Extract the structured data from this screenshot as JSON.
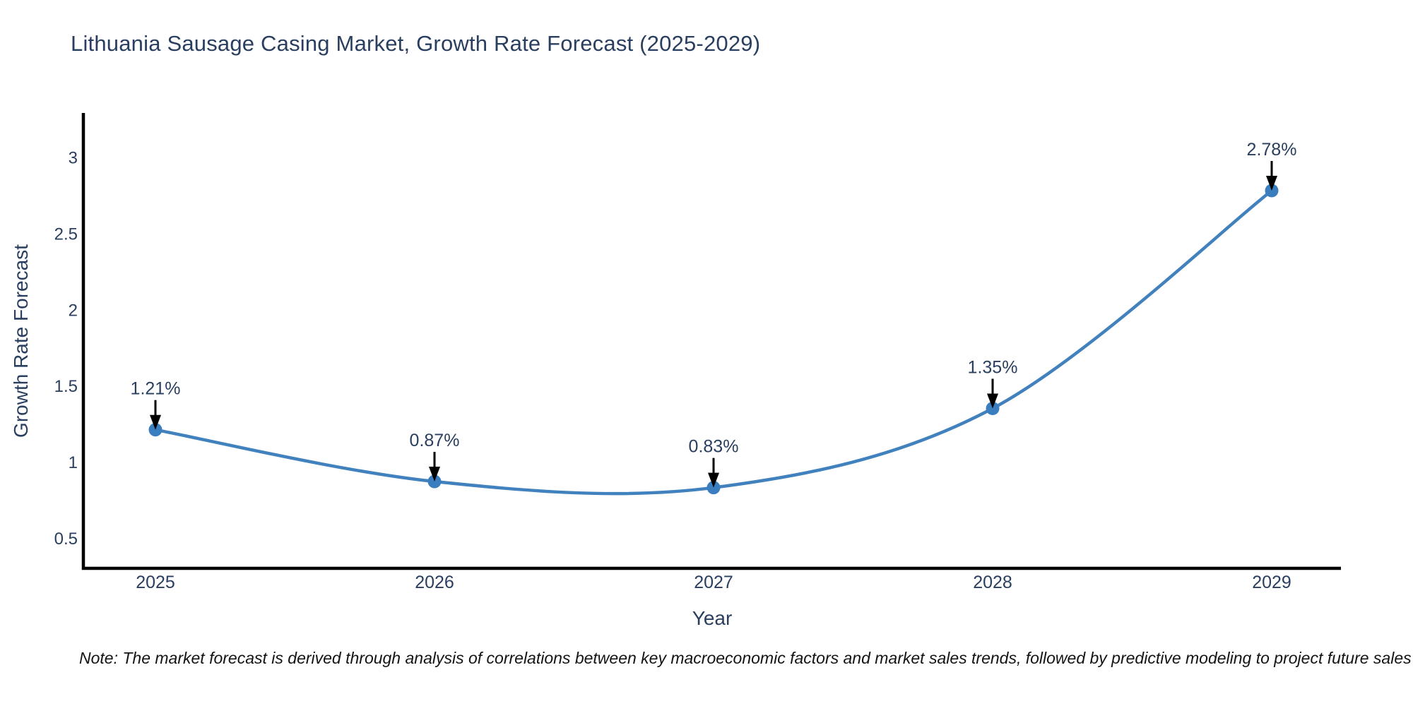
{
  "page": {
    "background": "#ffffff"
  },
  "chart_data": {
    "type": "line",
    "title": "Lithuania Sausage Casing Market, Growth Rate Forecast (2025-2029)",
    "xlabel": "Year",
    "ylabel": "Growth Rate Forecast",
    "categories": [
      "2025",
      "2026",
      "2027",
      "2028",
      "2029"
    ],
    "series": [
      {
        "name": "Growth Rate Forecast",
        "values": [
          1.21,
          0.87,
          0.83,
          1.35,
          2.78
        ],
        "point_labels": [
          "1.21%",
          "0.87%",
          "0.83%",
          "1.35%",
          "2.78%"
        ]
      }
    ],
    "line_shape": "spline",
    "markers": true,
    "grid": false,
    "legend_position": "none",
    "yticks": [
      0.5,
      1,
      1.5,
      2,
      2.5,
      3
    ],
    "ytick_labels": [
      "0.5",
      "1",
      "1.5",
      "2",
      "2.5",
      "3"
    ],
    "ylim": [
      0.3,
      3.29
    ],
    "colors": {
      "line": "#4181bd",
      "marker": "#3a7ec0",
      "annotation_text": "#2a3f5f",
      "annotation_arrow": "#000000",
      "axis_spine": "#000000",
      "tick_text": "#2a3f5f"
    }
  },
  "footnote": {
    "text": "Note: The market forecast is derived through analysis of correlations between key macroeconomic factors and market sales trends, followed by predictive modeling to project future sales"
  }
}
